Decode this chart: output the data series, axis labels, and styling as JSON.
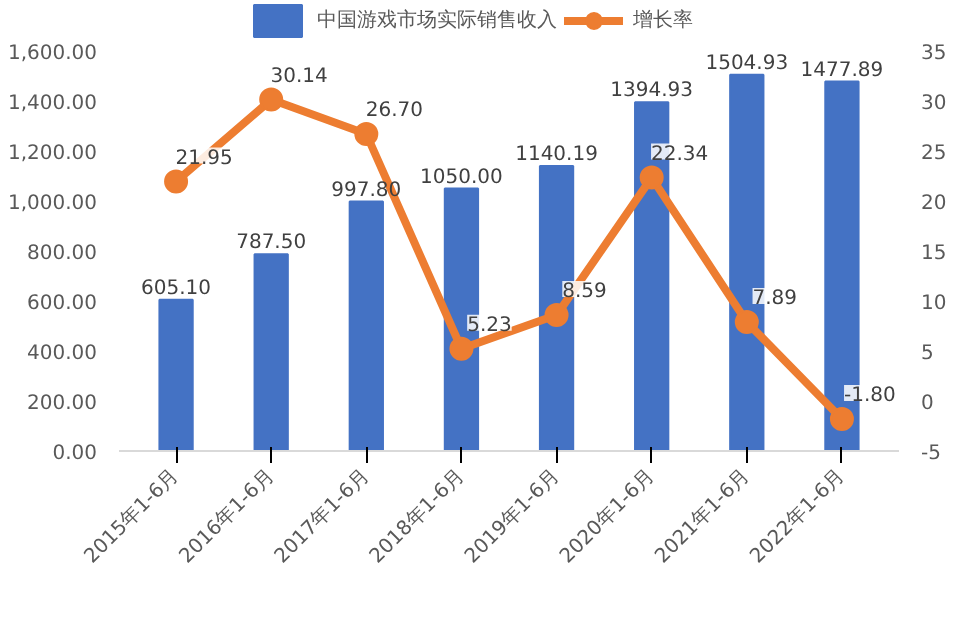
{
  "chart_data": {
    "type": "bar",
    "categories": [
      "2015年1-6月",
      "2016年1-6月",
      "2017年1-6月",
      "2018年1-6月",
      "2019年1-6月",
      "2020年1-6月",
      "2021年1-6月",
      "2022年1-6月"
    ],
    "series": [
      {
        "name": "中国游戏市场实际销售收入",
        "color": "#4472c4",
        "values": [
          605.1,
          787.5,
          997.8,
          1050.0,
          1140.19,
          1394.93,
          1504.93,
          1477.89
        ],
        "value_labels": [
          "605.10",
          "787.50",
          "997.80",
          "1050.00",
          "1140.19",
          "1394.93",
          "1504.93",
          "1477.89"
        ]
      },
      {
        "name": "增长率",
        "type": "line",
        "axis": "y2",
        "color": "#ed7d31",
        "marker": "circle",
        "values": [
          21.95,
          30.14,
          26.7,
          5.23,
          8.59,
          22.34,
          7.89,
          -1.8
        ],
        "value_labels": [
          "21.95",
          "30.14",
          "26.70",
          "5.23",
          "8.59",
          "22.34",
          "7.89",
          "-1.80"
        ]
      }
    ],
    "ylim": [
      0,
      1600
    ],
    "yticks": [
      {
        "value": 0,
        "label": "0.00"
      },
      {
        "value": 200,
        "label": "200.00"
      },
      {
        "value": 400,
        "label": "400.00"
      },
      {
        "value": 600,
        "label": "600.00"
      },
      {
        "value": 800,
        "label": "800.00"
      },
      {
        "value": 1000,
        "label": "1,000.00"
      },
      {
        "value": 1200,
        "label": "1,200.00"
      },
      {
        "value": 1400,
        "label": "1,400.00"
      },
      {
        "value": 1600,
        "label": "1,600.00"
      }
    ],
    "y2lim": [
      -5,
      35
    ],
    "y2ticks": [
      -5,
      0,
      5,
      10,
      15,
      20,
      25,
      30,
      35
    ],
    "grid": false,
    "legend": "top"
  }
}
